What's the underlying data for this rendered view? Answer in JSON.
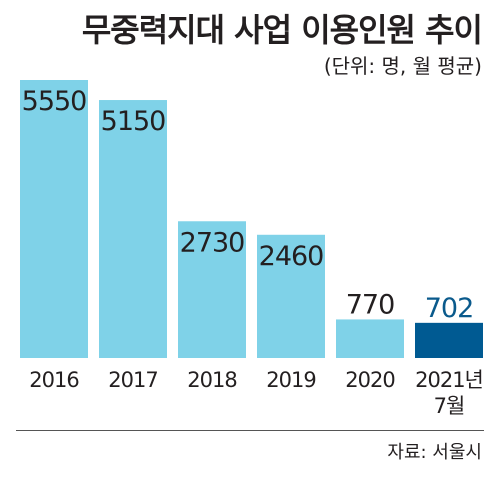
{
  "title": "무중력지대 사업 이용인원 추이",
  "unit_note": "(단위: 명, 월 평균)",
  "source": "자료: 서울시",
  "colors": {
    "bar": "#7fd2e8",
    "highlight_bar": "#005a92",
    "highlight_label": "#0a5a8c",
    "text": "#231f20"
  },
  "chart_data": {
    "type": "bar",
    "title": "무중력지대 사업 이용인원 추이",
    "ylabel": "",
    "xlabel": "",
    "unit": "(단위: 명, 월 평균)",
    "categories": [
      "2016",
      "2017",
      "2018",
      "2019",
      "2020",
      "2021년 7월"
    ],
    "values": [
      5550,
      5150,
      2730,
      2460,
      770,
      702
    ],
    "data_labels": [
      "5550",
      "5150",
      "2730",
      "2460",
      "770",
      "702"
    ],
    "highlight_index": 5,
    "ylim": [
      0,
      5550
    ],
    "grid": false,
    "legend": "none"
  }
}
